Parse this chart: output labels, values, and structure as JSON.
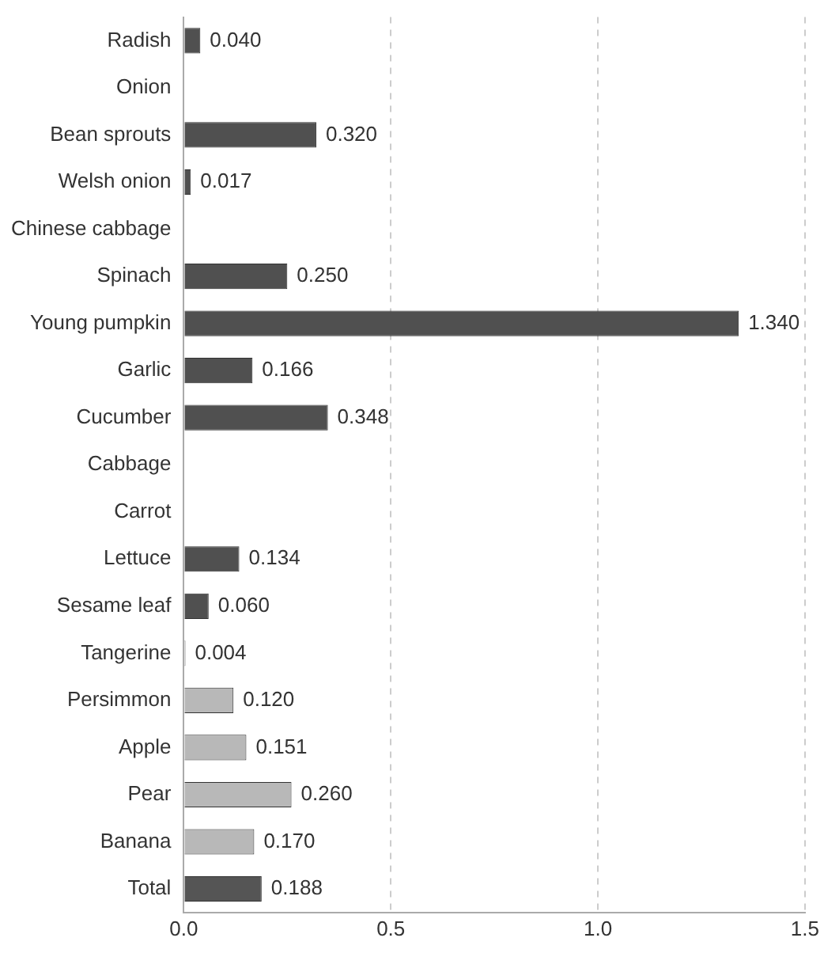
{
  "chart_data": {
    "type": "bar",
    "orientation": "horizontal",
    "categories": [
      "Radish",
      "Onion",
      "Bean sprouts",
      "Welsh onion",
      "Chinese cabbage",
      "Spinach",
      "Young pumpkin",
      "Garlic",
      "Cucumber",
      "Cabbage",
      "Carrot",
      "Lettuce",
      "Sesame leaf",
      "Tangerine",
      "Persimmon",
      "Apple",
      "Pear",
      "Banana",
      "Total"
    ],
    "values": [
      0.04,
      null,
      0.32,
      0.017,
      null,
      0.25,
      1.34,
      0.166,
      0.348,
      null,
      null,
      0.134,
      0.06,
      0.004,
      0.12,
      0.151,
      0.26,
      0.17,
      0.188
    ],
    "colors": [
      "#505050",
      "#505050",
      "#505050",
      "#505050",
      "#505050",
      "#505050",
      "#505050",
      "#505050",
      "#505050",
      "#505050",
      "#505050",
      "#505050",
      "#505050",
      "#b8b8b8",
      "#b8b8b8",
      "#b8b8b8",
      "#b8b8b8",
      "#b8b8b8",
      "#555555"
    ],
    "value_labels": [
      "0.040",
      null,
      "0.320",
      "0.017",
      null,
      "0.250",
      "1.340",
      "0.166",
      "0.348",
      null,
      null,
      "0.134",
      "0.060",
      "0.004",
      "0.120",
      "0.151",
      "0.260",
      "0.170",
      "0.188"
    ],
    "xlim": [
      0,
      1.5
    ],
    "xticks": [
      {
        "value": 0,
        "label": "0.0"
      },
      {
        "value": 0.5,
        "label": "0.5"
      },
      {
        "value": 1,
        "label": "1.0"
      },
      {
        "value": 1.5,
        "label": "1.5"
      }
    ],
    "grid": "x",
    "legend": false
  }
}
